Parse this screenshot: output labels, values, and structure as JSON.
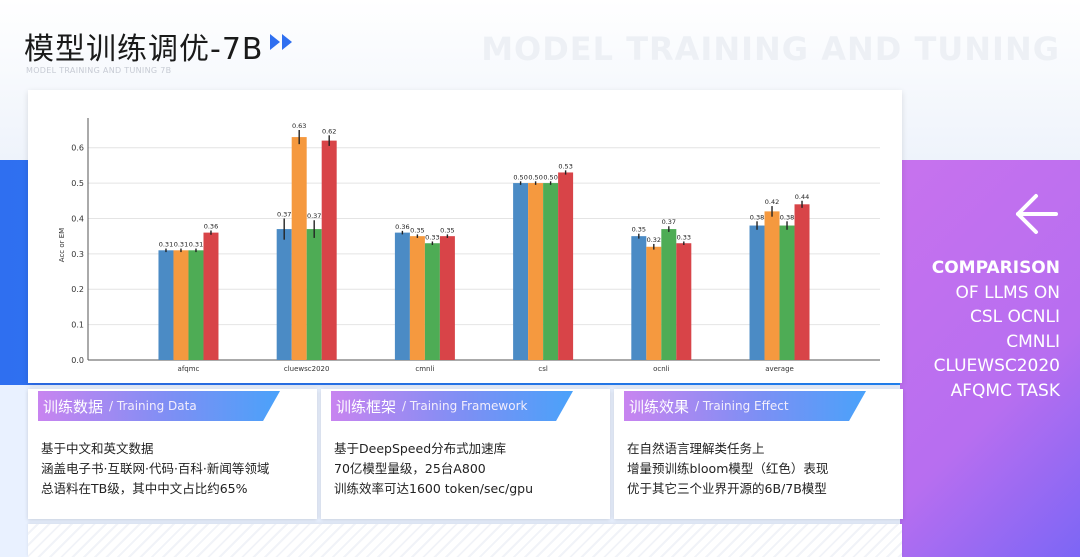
{
  "header": {
    "title": "模型训练调优-7B",
    "subtitle": "MODEL TRAINING AND TUNING 7B",
    "watermark": "MODEL TRAINING AND TUNING"
  },
  "side": {
    "lines": [
      "COMPARISON",
      "OF LLMS ON",
      "CSL OCNLI",
      "CMNLI",
      "CLUEWSC2020",
      "AFQMC TASK"
    ]
  },
  "cards": [
    {
      "title_zh": "训练数据",
      "title_en": "/ Training Data",
      "lines": [
        "基于中文和英文数据",
        "涵盖电子书·互联网·代码·百科·新闻等领域",
        "总语料在TB级，其中中文占比约65%"
      ]
    },
    {
      "title_zh": "训练框架",
      "title_en": "/ Training Framework",
      "lines": [
        "基于DeepSpeed分布式加速库",
        "70亿模型量级，25台A800",
        "训练效率可达1600 token/sec/gpu"
      ]
    },
    {
      "title_zh": "训练效果",
      "title_en": "/ Training Effect",
      "lines": [
        "在自然语言理解类任务上",
        "增量预训练bloom模型（红色）表现",
        "优于其它三个业界开源的6B/7B模型"
      ]
    }
  ],
  "colors": {
    "series": [
      "#4b8bc5",
      "#f5993f",
      "#4eac55",
      "#d84448"
    ],
    "accent_blue": "#2f6ff0",
    "accent_purple": "#c772ee"
  },
  "chart_data": {
    "type": "bar",
    "ylabel": "Acc or EM",
    "ylim": [
      0,
      0.65
    ],
    "yticks": [
      "0.0",
      "0.1",
      "0.2",
      "0.3",
      "0.4",
      "0.5",
      "0.6"
    ],
    "grid": true,
    "categories": [
      "afqmc",
      "cluewsc2020",
      "cmnli",
      "csl",
      "ocnli",
      "average"
    ],
    "series": [
      {
        "values": [
          0.31,
          0.37,
          0.36,
          0.5,
          0.35,
          0.38
        ],
        "errors": [
          0.005,
          0.03,
          0.005,
          0.005,
          0.007,
          0.012
        ]
      },
      {
        "values": [
          0.31,
          0.63,
          0.35,
          0.5,
          0.32,
          0.42
        ],
        "errors": [
          0.005,
          0.02,
          0.005,
          0.005,
          0.008,
          0.015
        ]
      },
      {
        "values": [
          0.31,
          0.37,
          0.33,
          0.5,
          0.37,
          0.38
        ],
        "errors": [
          0.005,
          0.025,
          0.005,
          0.005,
          0.008,
          0.012
        ]
      },
      {
        "values": [
          0.36,
          0.62,
          0.35,
          0.53,
          0.33,
          0.44
        ],
        "errors": [
          0.006,
          0.015,
          0.005,
          0.006,
          0.005,
          0.01
        ]
      }
    ],
    "value_labels": [
      [
        "0.31",
        "0.37",
        "0.36",
        "0.50",
        "0.35",
        "0.38"
      ],
      [
        "0.31",
        "0.63",
        "0.35",
        "0.50",
        "0.32",
        "0.42"
      ],
      [
        "0.31",
        "0.37",
        "0.33",
        "0.50",
        "0.37",
        "0.38"
      ],
      [
        "0.36",
        "0.62",
        "0.35",
        "0.53",
        "0.33",
        "0.44"
      ]
    ]
  }
}
